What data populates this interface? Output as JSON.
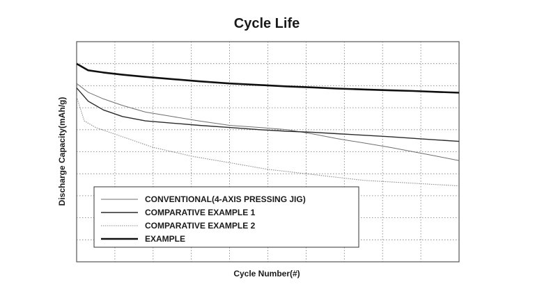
{
  "chart_data": {
    "type": "line",
    "title": "Cycle Life",
    "xlabel": "Cycle Number(#)",
    "ylabel": "Discharge Capacity(mAh/g)",
    "grid": true,
    "legend_position": "bottom-left",
    "xlim": [
      0,
      100
    ],
    "ylim": [
      0,
      100
    ],
    "x_divisions": 10,
    "y_divisions": 10,
    "series": [
      {
        "name": "CONVENTIONAL(4-AXIS PRESSING JIG)",
        "color": "#6e6e6e",
        "style": "thin",
        "x": [
          0,
          3,
          7,
          12,
          18,
          25,
          32,
          40,
          48,
          55,
          62,
          68,
          75,
          82,
          88,
          94,
          100
        ],
        "y": [
          81,
          77,
          74,
          71,
          68,
          66,
          64,
          62,
          61,
          60,
          58,
          56,
          54,
          52,
          50,
          48,
          46
        ]
      },
      {
        "name": "COMPARATIVE EXAMPLE 1",
        "color": "#2a2a2a",
        "style": "medium",
        "x": [
          0,
          3,
          7,
          12,
          18,
          25,
          32,
          40,
          48,
          55,
          62,
          68,
          75,
          82,
          88,
          94,
          100
        ],
        "y": [
          79,
          73,
          69,
          66,
          64,
          63,
          62,
          61,
          60,
          59.3,
          58.8,
          58.2,
          57.5,
          56.8,
          56.1,
          55.4,
          54.7
        ]
      },
      {
        "name": "COMPARATIVE EXAMPLE 2",
        "color": "#8a8a8a",
        "style": "dotted",
        "x": [
          0,
          2,
          5,
          10,
          15,
          20,
          25,
          30,
          35,
          40,
          45,
          50,
          55,
          60,
          65,
          70,
          75,
          80,
          85,
          90,
          95,
          100
        ],
        "y": [
          75,
          64,
          61,
          58,
          55,
          52,
          50,
          48,
          46.5,
          45,
          43.5,
          42,
          41,
          40,
          39,
          38,
          37,
          36.5,
          36,
          35.5,
          35,
          34.5
        ]
      },
      {
        "name": "EXAMPLE",
        "color": "#101010",
        "style": "thick",
        "x": [
          0,
          3,
          7,
          12,
          18,
          25,
          32,
          40,
          48,
          55,
          62,
          68,
          75,
          82,
          88,
          94,
          100
        ],
        "y": [
          90,
          87,
          86,
          85,
          84,
          83,
          82,
          81,
          80.3,
          79.7,
          79.2,
          78.7,
          78.3,
          77.9,
          77.6,
          77.2,
          76.8
        ]
      }
    ]
  }
}
